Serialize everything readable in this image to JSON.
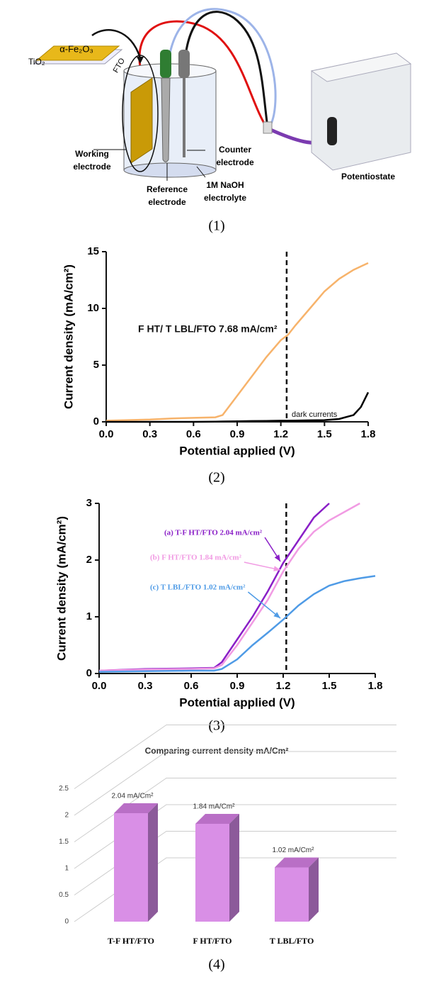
{
  "diagram": {
    "fe2o3": "α-Fe₂O₃",
    "tio2": "TiO₂",
    "fto": "FTO",
    "working": [
      "Working",
      "electrode"
    ],
    "reference": [
      "Reference",
      "electrode"
    ],
    "counter": [
      "Counter",
      "electrode"
    ],
    "electrolyte": [
      "1M NaOH",
      "electrolyte"
    ],
    "potentiostat": "Potentiostate",
    "caption": "(1)"
  },
  "chart_data": [
    {
      "type": "line",
      "caption": "(2)",
      "x_label": "Potential applied (V)",
      "y_label": "Current density (mA/cm²)",
      "xlim": [
        0,
        1.8
      ],
      "xticks": [
        {
          "value": 0,
          "label": "0.0"
        },
        0.3,
        0.6,
        0.9,
        1.2,
        1.5,
        1.8
      ],
      "ylim": [
        0,
        15
      ],
      "yticks": [
        0,
        5,
        10,
        15
      ],
      "vline": 1.24,
      "x": [
        0,
        0.3,
        0.45,
        0.6,
        0.75,
        0.8,
        0.9,
        1.0,
        1.1,
        1.2,
        1.25,
        1.3,
        1.4,
        1.5,
        1.6,
        1.7,
        1.75,
        1.8
      ],
      "series": [
        {
          "color": "#f7b36b",
          "values": [
            0.1,
            0.2,
            0.3,
            0.35,
            0.4,
            0.6,
            2.3,
            4.0,
            5.7,
            7.2,
            7.68,
            8.5,
            10.0,
            11.5,
            12.6,
            13.4,
            13.7,
            14.0
          ]
        },
        {
          "color": "#000000",
          "values": [
            0,
            0,
            0,
            0,
            0.02,
            0.03,
            0.05,
            0.07,
            0.08,
            0.1,
            0.1,
            0.11,
            0.13,
            0.15,
            0.25,
            0.6,
            1.3,
            2.6
          ]
        }
      ],
      "annotations": [
        "F HT/ T LBL/FTO 7.68 mA/cm²",
        "dark currents"
      ]
    },
    {
      "type": "line",
      "caption": "(3)",
      "x_label": "Potential applied (V)",
      "y_label": "Current density (mA/cm²)",
      "xlim": [
        0,
        1.8
      ],
      "xticks": [
        {
          "value": 0,
          "label": "0.0"
        },
        0.3,
        0.6,
        0.9,
        1.2,
        1.5,
        1.8
      ],
      "ylim": [
        0,
        3
      ],
      "yticks": [
        0,
        1,
        2,
        3
      ],
      "vline": 1.22,
      "x": [
        0,
        0.3,
        0.6,
        0.75,
        0.8,
        0.9,
        1.0,
        1.1,
        1.2,
        1.3,
        1.4,
        1.5,
        1.6,
        1.7,
        1.8
      ],
      "series": [
        {
          "color": "#8a1fc7",
          "values": [
            0.05,
            0.08,
            0.09,
            0.1,
            0.2,
            0.6,
            1.0,
            1.45,
            1.95,
            2.35,
            2.75,
            3.0,
            null,
            null,
            null
          ]
        },
        {
          "color": "#f19be3",
          "values": [
            0.05,
            0.07,
            0.08,
            0.09,
            0.15,
            0.5,
            0.9,
            1.3,
            1.8,
            2.2,
            2.5,
            2.7,
            2.85,
            3.0,
            null
          ]
        },
        {
          "color": "#4f9be6",
          "values": [
            0.03,
            0.04,
            0.05,
            0.05,
            0.08,
            0.25,
            0.5,
            0.72,
            0.95,
            1.2,
            1.4,
            1.55,
            1.63,
            1.68,
            1.72
          ]
        }
      ],
      "annotations": [
        "(a) T-F HT/FTO 2.04 mA/cm²",
        "(b) F HT/FTO 1.84 mA/cm²",
        "(c) T LBL/FTO 1.02 mA/cm²"
      ]
    },
    {
      "type": "bar",
      "caption": "(4)",
      "title": "Comparing current density mA/Cm²",
      "categories": [
        "T-F HT/FTO",
        "F HT/FTO",
        "T LBL/FTO"
      ],
      "values": [
        2.04,
        1.84,
        1.02
      ],
      "value_labels": [
        "2.04 mA/Cm²",
        "1.84 mA/Cm²",
        "1.02 mA/Cm²"
      ],
      "color": "#d98fe6",
      "ylim": [
        0,
        2.5
      ],
      "yticks": [
        0,
        0.5,
        1,
        1.5,
        2,
        2.5
      ],
      "grid": true
    }
  ]
}
